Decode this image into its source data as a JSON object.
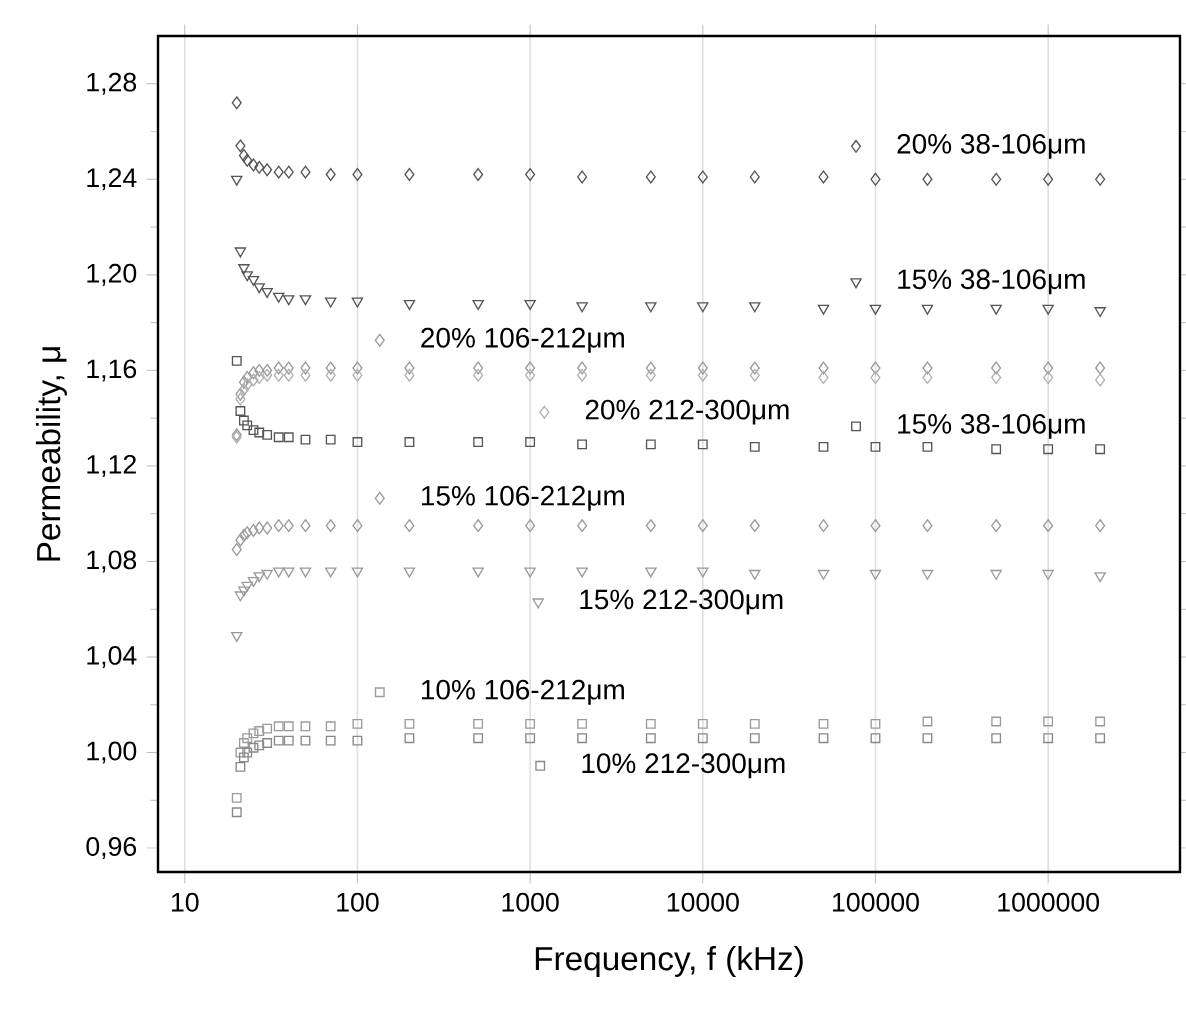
{
  "chart_data": {
    "type": "scatter",
    "xlabel": "Frequency, f (kHz)",
    "ylabel": "Permeability, μ",
    "log": "x",
    "grid": "x",
    "legend": "right",
    "xlim": [
      7,
      5800000
    ],
    "xticks": [
      10,
      100,
      1000,
      10000,
      100000,
      1000000
    ],
    "ylim": [
      0.95,
      1.3
    ],
    "yticks": [
      {
        "value": 0.96,
        "label": "0,96"
      },
      {
        "value": 1.0,
        "label": "1,00"
      },
      {
        "value": 1.04,
        "label": "1,04"
      },
      {
        "value": 1.08,
        "label": "1,08"
      },
      {
        "value": 1.12,
        "label": "1,12"
      },
      {
        "value": 1.16,
        "label": "1,16"
      },
      {
        "value": 1.2,
        "label": "1,20"
      },
      {
        "value": 1.24,
        "label": "1,24"
      },
      {
        "value": 1.28,
        "label": "1,28"
      }
    ],
    "x": [
      20,
      21,
      22,
      23,
      25,
      27,
      30,
      35,
      40,
      50,
      70,
      100,
      200,
      500,
      1000,
      2000,
      5000,
      10000,
      20000,
      50000,
      100000,
      200000,
      500000,
      1000000,
      2000000
    ],
    "series": [
      {
        "name": "20% 38-106μm",
        "color": "#555555",
        "marker": "diamond",
        "values": [
          1.272,
          1.254,
          1.25,
          1.248,
          1.246,
          1.245,
          1.244,
          1.243,
          1.243,
          1.243,
          1.242,
          1.242,
          1.242,
          1.242,
          1.242,
          1.241,
          1.241,
          1.241,
          1.241,
          1.241,
          1.24,
          1.24,
          1.24,
          1.24,
          1.24
        ]
      },
      {
        "name": "15% 38-106μm",
        "color": "#555555",
        "marker": "triangle",
        "values": [
          1.24,
          1.21,
          1.203,
          1.2,
          1.198,
          1.195,
          1.193,
          1.191,
          1.19,
          1.19,
          1.189,
          1.189,
          1.188,
          1.188,
          1.188,
          1.187,
          1.187,
          1.187,
          1.187,
          1.186,
          1.186,
          1.186,
          1.186,
          1.186,
          1.185
        ]
      },
      {
        "name": "20% 106-212μm",
        "color": "#9a9a9a",
        "marker": "diamond",
        "values": [
          1.133,
          1.15,
          1.155,
          1.157,
          1.159,
          1.16,
          1.16,
          1.161,
          1.161,
          1.161,
          1.161,
          1.161,
          1.161,
          1.161,
          1.161,
          1.161,
          1.161,
          1.161,
          1.161,
          1.161,
          1.161,
          1.161,
          1.161,
          1.161,
          1.161
        ]
      },
      {
        "name": "20% 212-300μm",
        "color": "#b0b0b0",
        "marker": "diamond",
        "values": [
          1.132,
          1.148,
          1.152,
          1.154,
          1.156,
          1.157,
          1.158,
          1.158,
          1.158,
          1.158,
          1.158,
          1.158,
          1.158,
          1.158,
          1.158,
          1.158,
          1.158,
          1.158,
          1.158,
          1.157,
          1.157,
          1.157,
          1.157,
          1.157,
          1.156
        ]
      },
      {
        "name": "15% 38-106μm",
        "color": "#555555",
        "marker": "square",
        "values": [
          1.164,
          1.143,
          1.139,
          1.137,
          1.135,
          1.134,
          1.133,
          1.132,
          1.132,
          1.131,
          1.131,
          1.13,
          1.13,
          1.13,
          1.13,
          1.129,
          1.129,
          1.129,
          1.128,
          1.128,
          1.128,
          1.128,
          1.127,
          1.127,
          1.127
        ]
      },
      {
        "name": "15% 106-212μm",
        "color": "#9a9a9a",
        "marker": "diamond",
        "values": [
          1.085,
          1.089,
          1.091,
          1.092,
          1.093,
          1.094,
          1.094,
          1.095,
          1.095,
          1.095,
          1.095,
          1.095,
          1.095,
          1.095,
          1.095,
          1.095,
          1.095,
          1.095,
          1.095,
          1.095,
          1.095,
          1.095,
          1.095,
          1.095,
          1.095
        ]
      },
      {
        "name": "15% 212-300μm",
        "color": "#9a9a9a",
        "marker": "triangle",
        "values": [
          1.049,
          1.066,
          1.068,
          1.07,
          1.072,
          1.074,
          1.075,
          1.076,
          1.076,
          1.076,
          1.076,
          1.076,
          1.076,
          1.076,
          1.076,
          1.076,
          1.076,
          1.076,
          1.075,
          1.075,
          1.075,
          1.075,
          1.075,
          1.075,
          1.074
        ]
      },
      {
        "name": "10% 106-212μm",
        "color": "#9a9a9a",
        "marker": "square",
        "values": [
          0.981,
          1.0,
          1.004,
          1.006,
          1.008,
          1.009,
          1.01,
          1.011,
          1.011,
          1.011,
          1.011,
          1.012,
          1.012,
          1.012,
          1.012,
          1.012,
          1.012,
          1.012,
          1.012,
          1.012,
          1.012,
          1.013,
          1.013,
          1.013,
          1.013
        ]
      },
      {
        "name": "10% 212-300μm",
        "color": "#888888",
        "marker": "square",
        "values": [
          0.975,
          0.994,
          0.998,
          1.0,
          1.002,
          1.003,
          1.004,
          1.005,
          1.005,
          1.005,
          1.005,
          1.005,
          1.006,
          1.006,
          1.006,
          1.006,
          1.006,
          1.006,
          1.006,
          1.006,
          1.006,
          1.006,
          1.006,
          1.006,
          1.006
        ]
      }
    ]
  }
}
